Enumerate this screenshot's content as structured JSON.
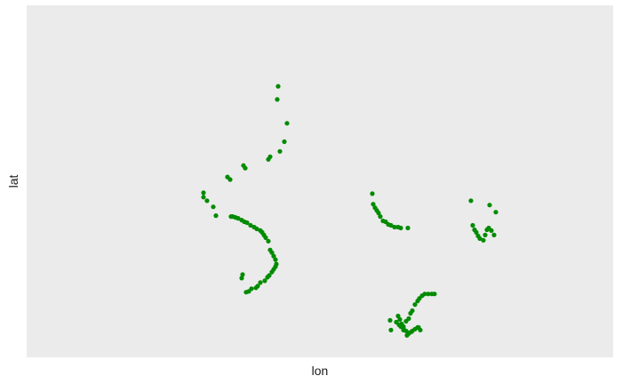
{
  "chart_data": {
    "type": "scatter",
    "title": "",
    "xlabel": "lon",
    "ylabel": "lat",
    "xlim": [
      0,
      660
    ],
    "ylim": [
      -400,
      0
    ],
    "grid": false,
    "point_color": "#008b00",
    "panel_color": "#ebebeb",
    "series": [
      {
        "name": "",
        "x": [
          283,
          282,
          293,
          290,
          285,
          274,
          272,
          244,
          246,
          226,
          229,
          199,
          199,
          203,
          210,
          213,
          230,
          232,
          235,
          238,
          242,
          245,
          248,
          252,
          256,
          259,
          263,
          265,
          267,
          269,
          272,
          274,
          276,
          278,
          280,
          281,
          280,
          278,
          276,
          273,
          271,
          268,
          263,
          260,
          258,
          253,
          250,
          247,
          243,
          242,
          389,
          390,
          392,
          394,
          396,
          398,
          401,
          404,
          407,
          410,
          414,
          418,
          421,
          429,
          500,
          502,
          504,
          506,
          508,
          510,
          514,
          516,
          518,
          520,
          523,
          526,
          521,
          528,
          409,
          418,
          420,
          422,
          424,
          427,
          430,
          432,
          434,
          437,
          440,
          442,
          445,
          448,
          452,
          456,
          459,
          416,
          419,
          421,
          424,
          427,
          430,
          433,
          437,
          440,
          443,
          428,
          430,
          434,
          441,
          424,
          410
        ],
        "y": [
          -92,
          -107,
          -134,
          -155,
          -166,
          -172,
          -175,
          -182,
          -185,
          -195,
          -198,
          -213,
          -218,
          -222,
          -229,
          -239,
          -240,
          -240,
          -241,
          -242,
          -244,
          -246,
          -247,
          -250,
          -252,
          -254,
          -256,
          -258,
          -261,
          -264,
          -268,
          -278,
          -281,
          -285,
          -289,
          -294,
          -297,
          -300,
          -303,
          -307,
          -309,
          -313,
          -315,
          -319,
          -321,
          -322,
          -325,
          -326,
          -306,
          -310,
          -214,
          -226,
          -230,
          -233,
          -236,
          -240,
          -245,
          -246,
          -249,
          -250,
          -252,
          -252,
          -253,
          -253,
          -222,
          -250,
          -255,
          -258,
          -262,
          -265,
          -267,
          -261,
          -255,
          -253,
          -256,
          -261,
          -227,
          -235,
          -358,
          -353,
          -357,
          -362,
          -365,
          -359,
          -356,
          -350,
          -347,
          -340,
          -336,
          -333,
          -330,
          -328,
          -328,
          -328,
          -328,
          -360,
          -363,
          -365,
          -367,
          -370,
          -372,
          -371,
          -368,
          -366,
          -369,
          -375,
          -373,
          -370,
          -366,
          -369,
          -369
        ]
      }
    ]
  }
}
